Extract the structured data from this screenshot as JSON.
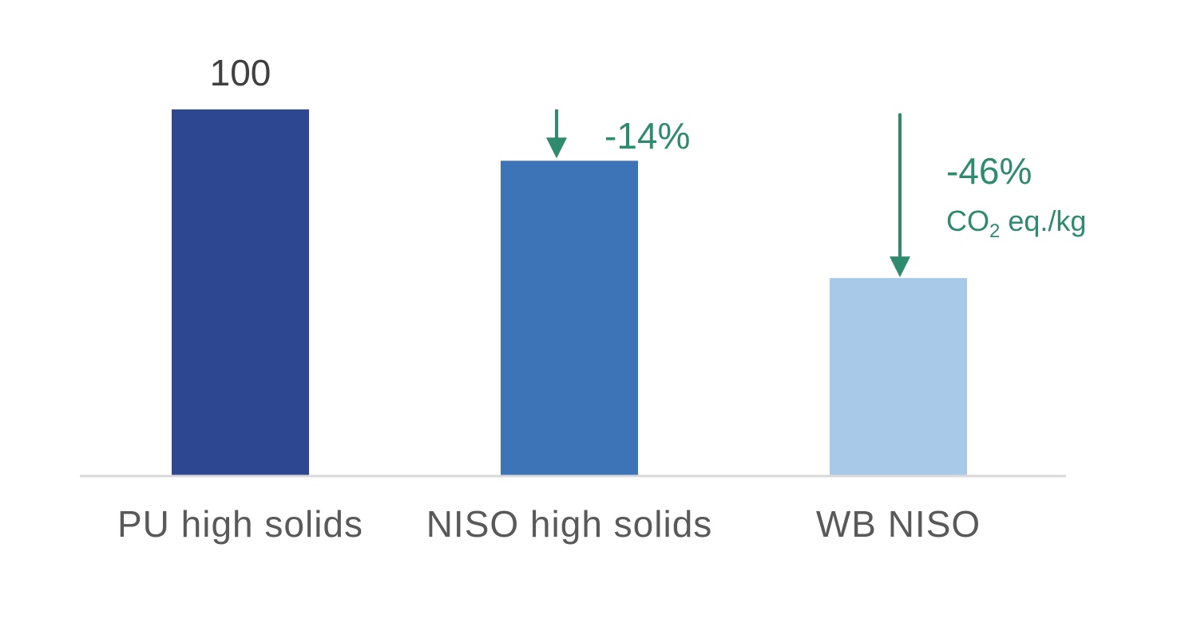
{
  "chart_data": {
    "type": "bar",
    "categories": [
      "PU high solids",
      "NISO high solids",
      "WB NISO"
    ],
    "values": [
      100,
      86,
      54
    ],
    "ylim": [
      0,
      100
    ],
    "grid": false,
    "data_labels": [
      "100",
      "",
      ""
    ],
    "annotations": [
      {
        "category_index": 1,
        "text": "-14%",
        "subtext_main": "",
        "subtext_sub": "",
        "subtext_rest": ""
      },
      {
        "category_index": 2,
        "text": "-46%",
        "subtext_main": "CO",
        "subtext_sub": "2",
        "subtext_rest": " eq./kg"
      }
    ],
    "colors": {
      "bars": [
        "#2d4790",
        "#3d73b7",
        "#a9c9e8"
      ],
      "annotation": "#2e8b6e",
      "axis": "#d9d9d9"
    }
  }
}
